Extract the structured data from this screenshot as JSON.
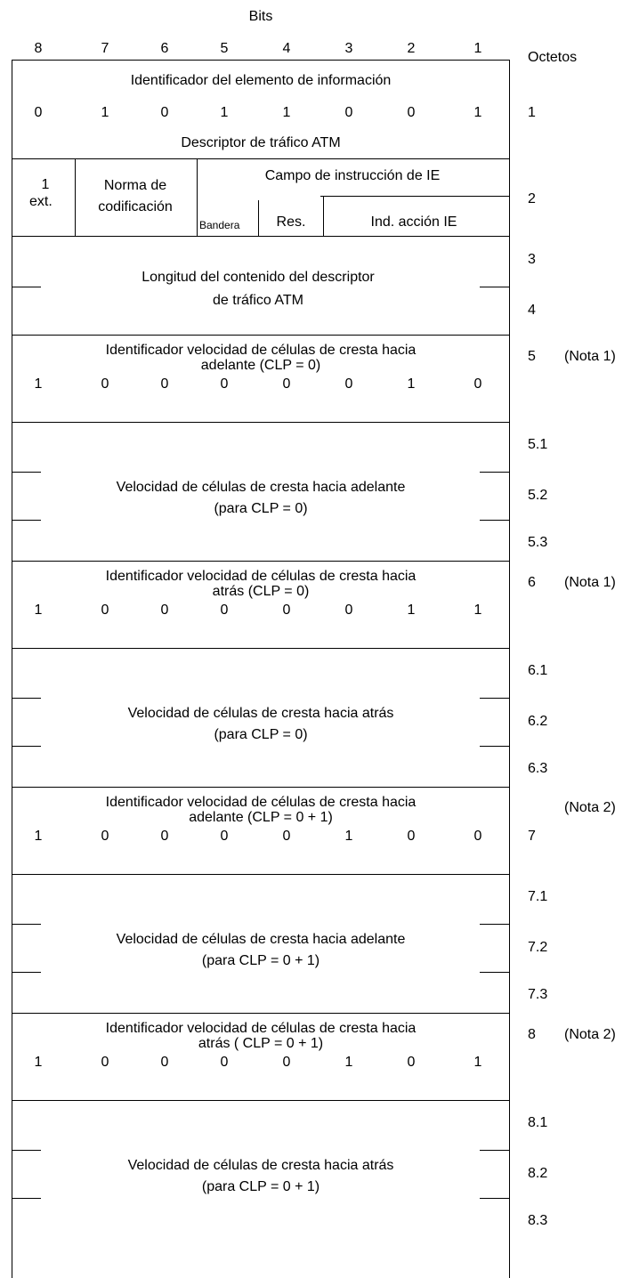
{
  "header": {
    "bits_label": "Bits",
    "bit_numbers": [
      "8",
      "7",
      "6",
      "5",
      "4",
      "3",
      "2",
      "1"
    ],
    "octets_label": "Octetos"
  },
  "ie_identifier": {
    "title": "Identificador del elemento de información",
    "bits": [
      "0",
      "1",
      "0",
      "1",
      "1",
      "0",
      "0",
      "1"
    ],
    "name": "Descriptor de tráfico ATM",
    "octet": "1"
  },
  "octet2": {
    "ext_value": "1",
    "ext_label": "ext.",
    "coding_line1": "Norma de",
    "coding_line2": "codificación",
    "ie_instruction": "Campo de instrucción de IE",
    "flag": "Bandera",
    "reserved": "Res.",
    "action": "Ind. acción IE",
    "octet": "2"
  },
  "length": {
    "line1": "Longitud del contenido del descriptor",
    "line2": "de tráfico ATM",
    "octets": [
      "3",
      "4"
    ]
  },
  "blocks": [
    {
      "id_line1": "Identificador velocidad de células de cresta hacia",
      "id_line2": "adelante (CLP = 0)",
      "bits": [
        "1",
        "0",
        "0",
        "0",
        "0",
        "0",
        "1",
        "0"
      ],
      "octet": "5",
      "note": "(Nota 1)",
      "val_line1": "Velocidad de células de cresta hacia adelante",
      "val_line2": "(para CLP = 0)",
      "sub_octets": [
        "5.1",
        "5.2",
        "5.3"
      ]
    },
    {
      "id_line1": "Identificador velocidad de células de cresta hacia",
      "id_line2": "atrás (CLP = 0)",
      "bits": [
        "1",
        "0",
        "0",
        "0",
        "0",
        "0",
        "1",
        "1"
      ],
      "octet": "6",
      "note": "(Nota 1)",
      "val_line1": "Velocidad de células de cresta hacia atrás",
      "val_line2": "(para CLP = 0)",
      "sub_octets": [
        "6.1",
        "6.2",
        "6.3"
      ]
    },
    {
      "id_line1": "Identificador velocidad de células de cresta hacia",
      "id_line2": "adelante (CLP = 0 + 1)",
      "bits": [
        "1",
        "0",
        "0",
        "0",
        "0",
        "1",
        "0",
        "0"
      ],
      "octet": "7",
      "note": "(Nota 2)",
      "val_line1": "Velocidad de células de cresta hacia adelante",
      "val_line2": "(para CLP = 0 + 1)",
      "sub_octets": [
        "7.1",
        "7.2",
        "7.3"
      ]
    },
    {
      "id_line1": "Identificador velocidad de células de cresta hacia",
      "id_line2": "atrás ( CLP = 0 + 1)",
      "bits": [
        "1",
        "0",
        "0",
        "0",
        "0",
        "1",
        "0",
        "1"
      ],
      "octet": "8",
      "note": "(Nota 2)",
      "val_line1": "Velocidad de células de cresta hacia atrás",
      "val_line2": "(para CLP = 0 + 1)",
      "sub_octets": [
        "8.1",
        "8.2",
        "8.3"
      ]
    }
  ]
}
